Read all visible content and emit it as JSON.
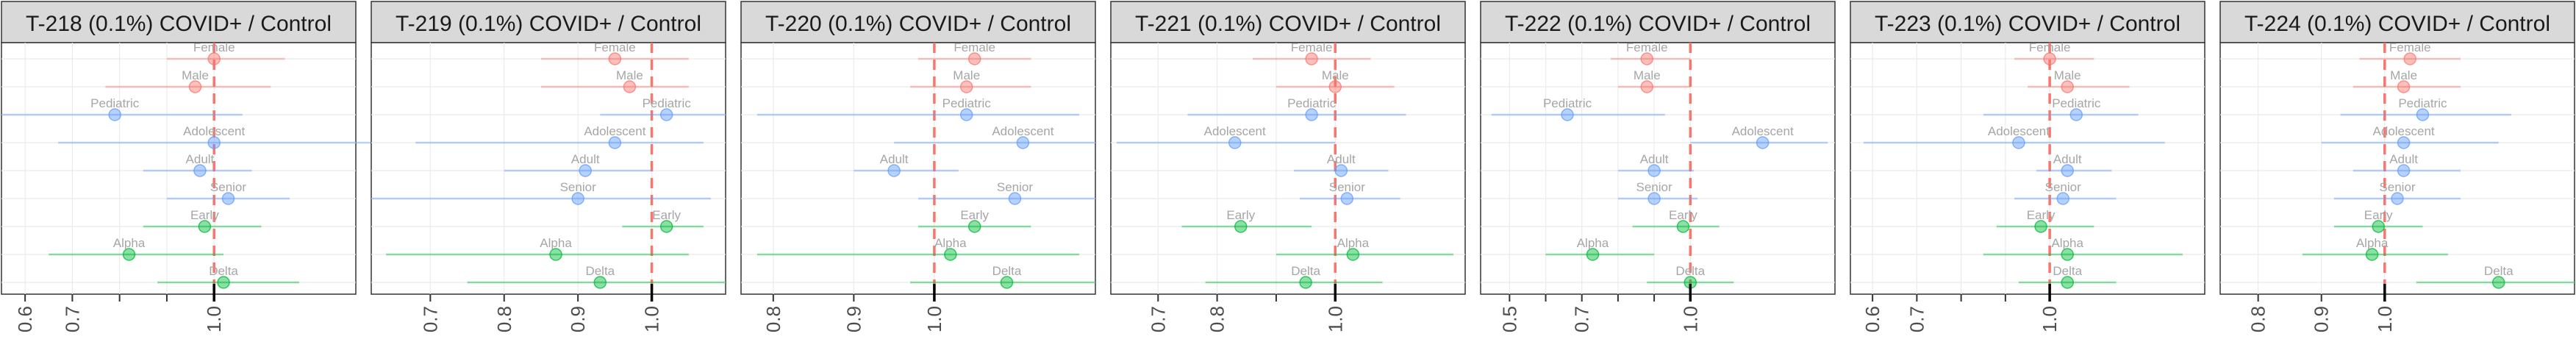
{
  "colors": {
    "sex": "#F8766D",
    "age": "#619CFF",
    "variant": "#00BA38",
    "reference": "#F8766D",
    "strip": "#d9d9d9",
    "grid": "#ebebeb"
  },
  "chart_data": [
    {
      "type": "forest",
      "title": "T-218 (0.1%) COVID+ / Control",
      "xlim": [
        0.55,
        1.3
      ],
      "ticks": [
        0.6,
        0.7,
        0.8,
        0.9,
        1.0
      ],
      "tick_labels": [
        "0.6",
        "0.7",
        "",
        "",
        "1.0"
      ],
      "points": [
        {
          "label": "Female",
          "group": "sex",
          "est": 1.0,
          "lo": 0.9,
          "hi": 1.15
        },
        {
          "label": "Male",
          "group": "sex",
          "est": 0.96,
          "lo": 0.77,
          "hi": 1.12
        },
        {
          "label": "Pediatric",
          "group": "age",
          "est": 0.79,
          "lo": 0.55,
          "hi": 1.06
        },
        {
          "label": "Adolescent",
          "group": "age",
          "est": 1.0,
          "lo": 0.67,
          "hi": 1.36
        },
        {
          "label": "Adult",
          "group": "age",
          "est": 0.97,
          "lo": 0.85,
          "hi": 1.08
        },
        {
          "label": "Senior",
          "group": "age",
          "est": 1.03,
          "lo": 0.9,
          "hi": 1.16
        },
        {
          "label": "Early",
          "group": "variant",
          "est": 0.98,
          "lo": 0.85,
          "hi": 1.1
        },
        {
          "label": "Alpha",
          "group": "variant",
          "est": 0.82,
          "lo": 0.65,
          "hi": 1.02
        },
        {
          "label": "Delta",
          "group": "variant",
          "est": 1.02,
          "lo": 0.88,
          "hi": 1.18
        }
      ]
    },
    {
      "type": "forest",
      "title": "T-219 (0.1%) COVID+ / Control",
      "xlim": [
        0.62,
        1.1
      ],
      "ticks": [
        0.7,
        0.8,
        0.9,
        1.0
      ],
      "tick_labels": [
        "0.7",
        "0.8",
        "0.9",
        "1.0"
      ],
      "points": [
        {
          "label": "Female",
          "group": "sex",
          "est": 0.95,
          "lo": 0.85,
          "hi": 1.05
        },
        {
          "label": "Male",
          "group": "sex",
          "est": 0.97,
          "lo": 0.85,
          "hi": 1.05
        },
        {
          "label": "Pediatric",
          "group": "age",
          "est": 1.02,
          "lo": 0.93,
          "hi": 1.1
        },
        {
          "label": "Adolescent",
          "group": "age",
          "est": 0.95,
          "lo": 0.68,
          "hi": 1.07
        },
        {
          "label": "Adult",
          "group": "age",
          "est": 0.91,
          "lo": 0.8,
          "hi": 1.0
        },
        {
          "label": "Senior",
          "group": "age",
          "est": 0.9,
          "lo": 0.62,
          "hi": 1.08
        },
        {
          "label": "Early",
          "group": "variant",
          "est": 1.02,
          "lo": 0.96,
          "hi": 1.07
        },
        {
          "label": "Alpha",
          "group": "variant",
          "est": 0.87,
          "lo": 0.64,
          "hi": 1.05
        },
        {
          "label": "Delta",
          "group": "variant",
          "est": 0.93,
          "lo": 0.75,
          "hi": 1.1
        }
      ]
    },
    {
      "type": "forest",
      "title": "T-220 (0.1%) COVID+ / Control",
      "xlim": [
        0.76,
        1.2
      ],
      "ticks": [
        0.8,
        0.9,
        1.0
      ],
      "tick_labels": [
        "0.8",
        "0.9",
        "1.0"
      ],
      "points": [
        {
          "label": "Female",
          "group": "sex",
          "est": 1.05,
          "lo": 0.98,
          "hi": 1.12
        },
        {
          "label": "Male",
          "group": "sex",
          "est": 1.04,
          "lo": 0.97,
          "hi": 1.12
        },
        {
          "label": "Pediatric",
          "group": "age",
          "est": 1.04,
          "lo": 0.78,
          "hi": 1.18
        },
        {
          "label": "Adolescent",
          "group": "age",
          "est": 1.11,
          "lo": 0.95,
          "hi": 1.2
        },
        {
          "label": "Adult",
          "group": "age",
          "est": 0.95,
          "lo": 0.9,
          "hi": 1.03
        },
        {
          "label": "Senior",
          "group": "age",
          "est": 1.1,
          "lo": 0.98,
          "hi": 1.2
        },
        {
          "label": "Early",
          "group": "variant",
          "est": 1.05,
          "lo": 0.98,
          "hi": 1.12
        },
        {
          "label": "Alpha",
          "group": "variant",
          "est": 1.02,
          "lo": 0.78,
          "hi": 1.18
        },
        {
          "label": "Delta",
          "group": "variant",
          "est": 1.09,
          "lo": 0.97,
          "hi": 1.2
        }
      ]
    },
    {
      "type": "forest",
      "title": "T-221 (0.1%) COVID+ / Control",
      "xlim": [
        0.62,
        1.22
      ],
      "ticks": [
        0.7,
        0.8,
        0.9,
        1.0
      ],
      "tick_labels": [
        "0.7",
        "0.8",
        "",
        "1.0"
      ],
      "points": [
        {
          "label": "Female",
          "group": "sex",
          "est": 0.96,
          "lo": 0.86,
          "hi": 1.06
        },
        {
          "label": "Male",
          "group": "sex",
          "est": 1.0,
          "lo": 0.9,
          "hi": 1.1
        },
        {
          "label": "Pediatric",
          "group": "age",
          "est": 0.96,
          "lo": 0.75,
          "hi": 1.12
        },
        {
          "label": "Adolescent",
          "group": "age",
          "est": 0.83,
          "lo": 0.63,
          "hi": 1.0
        },
        {
          "label": "Adult",
          "group": "age",
          "est": 1.01,
          "lo": 0.93,
          "hi": 1.09
        },
        {
          "label": "Senior",
          "group": "age",
          "est": 1.02,
          "lo": 0.94,
          "hi": 1.11
        },
        {
          "label": "Early",
          "group": "variant",
          "est": 0.84,
          "lo": 0.74,
          "hi": 0.96
        },
        {
          "label": "Alpha",
          "group": "variant",
          "est": 1.03,
          "lo": 0.9,
          "hi": 1.2
        },
        {
          "label": "Delta",
          "group": "variant",
          "est": 0.95,
          "lo": 0.78,
          "hi": 1.08
        }
      ]
    },
    {
      "type": "forest",
      "title": "T-222 (0.1%) COVID+ / Control",
      "xlim": [
        0.42,
        1.4
      ],
      "ticks": [
        0.5,
        0.6,
        0.7,
        0.8,
        0.9,
        1.0
      ],
      "tick_labels": [
        "0.5",
        "",
        "0.7",
        "",
        "",
        "1.0"
      ],
      "points": [
        {
          "label": "Female",
          "group": "sex",
          "est": 0.88,
          "lo": 0.78,
          "hi": 1.0
        },
        {
          "label": "Male",
          "group": "sex",
          "est": 0.88,
          "lo": 0.8,
          "hi": 1.0
        },
        {
          "label": "Pediatric",
          "group": "age",
          "est": 0.66,
          "lo": 0.45,
          "hi": 0.93
        },
        {
          "label": "Adolescent",
          "group": "age",
          "est": 1.2,
          "lo": 1.0,
          "hi": 1.38
        },
        {
          "label": "Adult",
          "group": "age",
          "est": 0.9,
          "lo": 0.8,
          "hi": 1.01
        },
        {
          "label": "Senior",
          "group": "age",
          "est": 0.9,
          "lo": 0.8,
          "hi": 1.02
        },
        {
          "label": "Early",
          "group": "variant",
          "est": 0.98,
          "lo": 0.84,
          "hi": 1.08
        },
        {
          "label": "Alpha",
          "group": "variant",
          "est": 0.73,
          "lo": 0.6,
          "hi": 0.9
        },
        {
          "label": "Delta",
          "group": "variant",
          "est": 1.0,
          "lo": 0.88,
          "hi": 1.12
        }
      ]
    },
    {
      "type": "forest",
      "title": "T-223 (0.1%) COVID+ / Control",
      "xlim": [
        0.55,
        1.35
      ],
      "ticks": [
        0.6,
        0.7,
        0.8,
        0.9,
        1.0
      ],
      "tick_labels": [
        "0.6",
        "0.7",
        "",
        "",
        "1.0"
      ],
      "points": [
        {
          "label": "Female",
          "group": "sex",
          "est": 1.0,
          "lo": 0.92,
          "hi": 1.1
        },
        {
          "label": "Male",
          "group": "sex",
          "est": 1.04,
          "lo": 0.95,
          "hi": 1.18
        },
        {
          "label": "Pediatric",
          "group": "age",
          "est": 1.06,
          "lo": 0.85,
          "hi": 1.2
        },
        {
          "label": "Adolescent",
          "group": "age",
          "est": 0.93,
          "lo": 0.58,
          "hi": 1.26
        },
        {
          "label": "Adult",
          "group": "age",
          "est": 1.04,
          "lo": 0.97,
          "hi": 1.14
        },
        {
          "label": "Senior",
          "group": "age",
          "est": 1.03,
          "lo": 0.92,
          "hi": 1.15
        },
        {
          "label": "Early",
          "group": "variant",
          "est": 0.98,
          "lo": 0.88,
          "hi": 1.1
        },
        {
          "label": "Alpha",
          "group": "variant",
          "est": 1.04,
          "lo": 0.85,
          "hi": 1.3
        },
        {
          "label": "Delta",
          "group": "variant",
          "est": 1.04,
          "lo": 0.93,
          "hi": 1.15
        }
      ]
    },
    {
      "type": "forest",
      "title": "T-224 (0.1%) COVID+ / Control",
      "xlim": [
        0.74,
        1.3
      ],
      "ticks": [
        0.8,
        0.9,
        1.0
      ],
      "tick_labels": [
        "0.8",
        "0.9",
        "1.0"
      ],
      "points": [
        {
          "label": "Female",
          "group": "sex",
          "est": 1.04,
          "lo": 0.96,
          "hi": 1.12
        },
        {
          "label": "Male",
          "group": "sex",
          "est": 1.03,
          "lo": 0.95,
          "hi": 1.12
        },
        {
          "label": "Pediatric",
          "group": "age",
          "est": 1.06,
          "lo": 0.93,
          "hi": 1.2
        },
        {
          "label": "Adolescent",
          "group": "age",
          "est": 1.03,
          "lo": 0.9,
          "hi": 1.18
        },
        {
          "label": "Adult",
          "group": "age",
          "est": 1.03,
          "lo": 0.95,
          "hi": 1.12
        },
        {
          "label": "Senior",
          "group": "age",
          "est": 1.02,
          "lo": 0.92,
          "hi": 1.12
        },
        {
          "label": "Early",
          "group": "variant",
          "est": 0.99,
          "lo": 0.92,
          "hi": 1.06
        },
        {
          "label": "Alpha",
          "group": "variant",
          "est": 0.98,
          "lo": 0.87,
          "hi": 1.1
        },
        {
          "label": "Delta",
          "group": "variant",
          "est": 1.18,
          "lo": 1.05,
          "hi": 1.3
        }
      ]
    }
  ]
}
